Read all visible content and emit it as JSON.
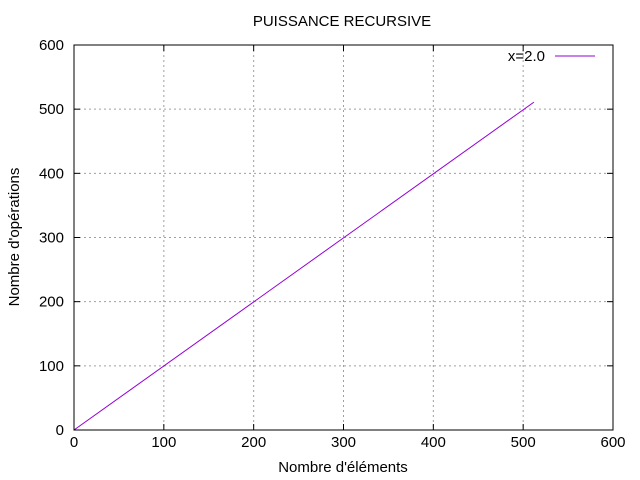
{
  "chart_data": {
    "type": "line",
    "title": "PUISSANCE RECURSIVE",
    "xlabel": "Nombre d'éléments",
    "ylabel": "Nombre d'opérations",
    "xlim": [
      0,
      600
    ],
    "ylim": [
      0,
      600
    ],
    "xticks": [
      0,
      100,
      200,
      300,
      400,
      500,
      600
    ],
    "yticks": [
      0,
      100,
      200,
      300,
      400,
      500,
      600
    ],
    "grid": true,
    "legend_position": "top-right",
    "series": [
      {
        "name": "x=2.0",
        "color": "#9400d3",
        "x": [
          0,
          512
        ],
        "y": [
          0,
          511
        ]
      }
    ]
  }
}
